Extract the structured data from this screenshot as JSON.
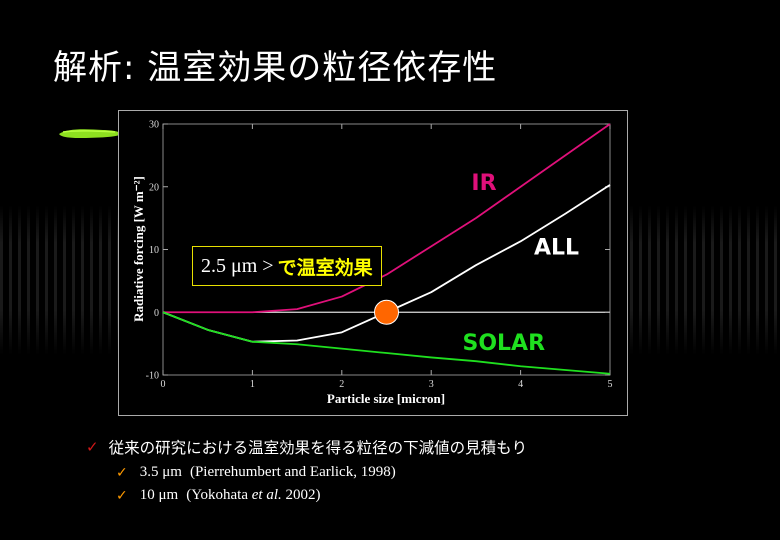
{
  "slide": {
    "title": "解析: 温室効果の粒径依存性"
  },
  "callout": {
    "value_text": "2.5 μm >",
    "jp_text": "で温室効果"
  },
  "bullets": {
    "main": "従来の研究における温室効果を得る粒径の下減値の見積もり",
    "sub": [
      {
        "value": "3.5 μm",
        "ref": "(Pierrehumbert and Earlick, 1998)"
      },
      {
        "value": "10  μm",
        "ref_before": "(Yokohata ",
        "ref_italic": "et al.",
        "ref_after": " 2002)"
      }
    ]
  },
  "chart_data": {
    "type": "line",
    "xlabel": "Particle size [micron]",
    "ylabel": "Radiative forcing [W m⁻²]",
    "xlim": [
      0,
      5
    ],
    "ylim": [
      -10,
      30
    ],
    "xticks": [
      0,
      1,
      2,
      3,
      4,
      5
    ],
    "yticks": [
      -10,
      0,
      10,
      20,
      30
    ],
    "series": [
      {
        "name": "IR",
        "color": "#e0107a",
        "x": [
          0,
          0.5,
          1,
          1.5,
          2,
          2.5,
          3,
          3.5,
          4,
          4.5,
          5
        ],
        "y": [
          0,
          0,
          0,
          0.5,
          2.5,
          6,
          10.5,
          15,
          20,
          25,
          30
        ]
      },
      {
        "name": "ALL",
        "color": "#ffffff",
        "x": [
          0,
          0.5,
          1,
          1.5,
          2,
          2.5,
          3,
          3.5,
          4,
          4.5,
          5
        ],
        "y": [
          0,
          -2.8,
          -4.7,
          -4.5,
          -3.2,
          0,
          3.2,
          7.5,
          11.3,
          15.7,
          20.3
        ]
      },
      {
        "name": "SOLAR",
        "color": "#1fe01f",
        "x": [
          0,
          0.5,
          1,
          1.5,
          2,
          2.5,
          3,
          3.5,
          4,
          4.5,
          5
        ],
        "y": [
          0,
          -2.8,
          -4.7,
          -5.1,
          -5.8,
          -6.5,
          -7.2,
          -7.8,
          -8.6,
          -9.2,
          -9.8
        ]
      }
    ],
    "highlight_point": {
      "x": 2.5,
      "y": 0,
      "color": "#ff6600"
    }
  }
}
